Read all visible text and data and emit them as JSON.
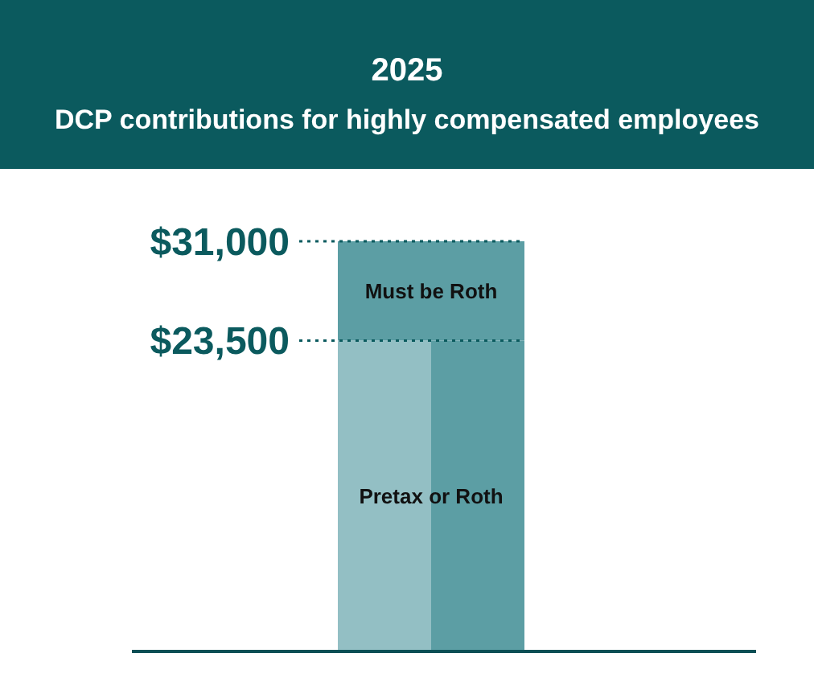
{
  "chart_data": {
    "type": "bar",
    "title": "2025",
    "subtitle": "DCP contributions for highly compensated employees",
    "categories": [
      null,
      null
    ],
    "stacked": true,
    "series": [
      {
        "color": "#93bfc4",
        "values": [
          23500,
          null
        ]
      },
      {
        "color": "#5c9ea4",
        "values": [
          null,
          23500
        ]
      },
      {
        "color": "#5c9ea4",
        "values": [
          7500,
          7500
        ]
      }
    ],
    "ylim": [
      0,
      31000
    ],
    "yticks": [
      {
        "value": 23500,
        "label": "$23,500"
      },
      {
        "value": 31000,
        "label": "$31,000"
      }
    ],
    "ref_lines": [
      {
        "axis": "y",
        "value": 31000,
        "line_style": "dotted",
        "color": "#0b5a5e"
      },
      {
        "axis": "y",
        "value": 23500,
        "line_style": "dotted",
        "color": "#0b5a5e"
      }
    ],
    "annotations": [
      {
        "text": "Must be Roth",
        "y": 27250
      },
      {
        "text": "Pretax or Roth",
        "y": 11750
      }
    ],
    "tick_labels": "y"
  }
}
